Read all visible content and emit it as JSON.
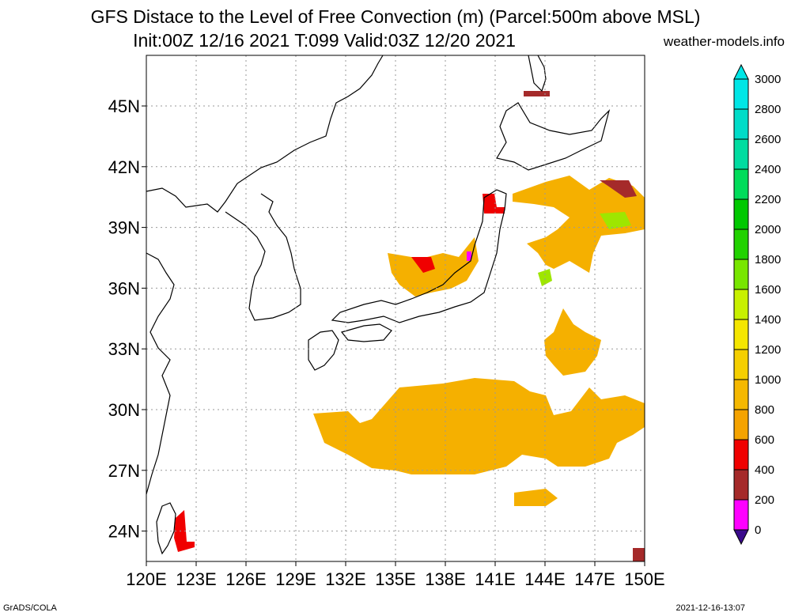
{
  "title": {
    "line1": "GFS Distace to the Level of Free Convection (m) (Parcel:500m above MSL)",
    "line2": "Init:00Z 12/16 2021 T:099 Valid:03Z 12/20 2021",
    "site": "weather-models.info"
  },
  "footer": {
    "left": "GrADS/COLA",
    "right": "2021-12-16-13:07"
  },
  "map": {
    "lon_range": [
      120,
      150
    ],
    "lat_range": [
      22.5,
      47.5
    ],
    "lon_ticks": [
      "120E",
      "123E",
      "126E",
      "129E",
      "132E",
      "135E",
      "138E",
      "141E",
      "144E",
      "147E",
      "150E"
    ],
    "lat_ticks": [
      "45N",
      "42N",
      "39N",
      "36N",
      "33N",
      "30N",
      "27N",
      "24N"
    ],
    "grid": "dotted"
  },
  "colorbar": {
    "labels": [
      "0",
      "200",
      "400",
      "600",
      "800",
      "1000",
      "1200",
      "1400",
      "1600",
      "1800",
      "2000",
      "2200",
      "2400",
      "2600",
      "2800",
      "3000"
    ],
    "colors": [
      "#3a0a8c",
      "#ff00ff",
      "#a52a2a",
      "#f00000",
      "#f5a300",
      "#f5b800",
      "#f5cf00",
      "#f5e600",
      "#c8f000",
      "#78e600",
      "#22d200",
      "#00c800",
      "#00dc5a",
      "#00dca0",
      "#00dcc8",
      "#00e6e6"
    ]
  }
}
